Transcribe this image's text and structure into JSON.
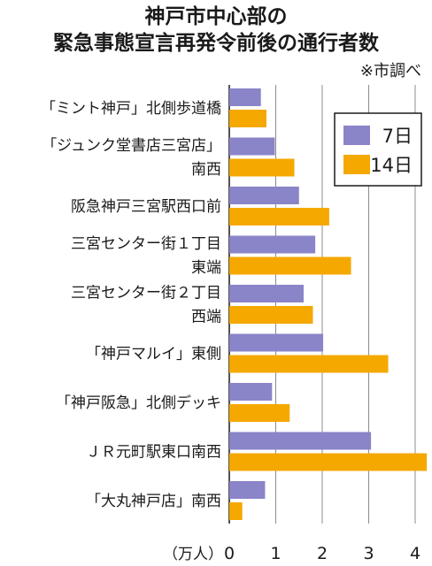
{
  "chart_data": {
    "type": "bar",
    "orientation": "horizontal",
    "title": [
      "神戸市中心部の",
      "緊急事態宣言再発令前後の通行者数"
    ],
    "source": "※市調べ",
    "unit_label": "（万人）",
    "xlim": [
      0,
      4.3
    ],
    "ticks": [
      "0",
      "1",
      "2",
      "3",
      "4"
    ],
    "grid": true,
    "legend_position": "top-right",
    "categories": [
      [
        "「ミント神戸」北側歩道橋"
      ],
      [
        "「ジュンク堂書店三宮店」",
        "南西"
      ],
      [
        "阪急神戸三宮駅西口前"
      ],
      [
        "三宮センター街１丁目",
        "東端"
      ],
      [
        "三宮センター街２丁目",
        "西端"
      ],
      [
        "「神戸マルイ」東側"
      ],
      [
        "「神戸阪急」北側デッキ"
      ],
      [
        "ＪＲ元町駅東口南西"
      ],
      [
        "「大丸神戸店」南西"
      ]
    ],
    "series": [
      {
        "name": "7日",
        "color": "#8a84c8",
        "values": [
          0.68,
          0.98,
          1.5,
          1.85,
          1.6,
          2.02,
          0.92,
          3.05,
          0.77
        ]
      },
      {
        "name": "14日",
        "color": "#f5a800",
        "values": [
          0.8,
          1.4,
          2.15,
          2.62,
          1.8,
          3.42,
          1.3,
          4.25,
          0.28
        ]
      }
    ]
  }
}
